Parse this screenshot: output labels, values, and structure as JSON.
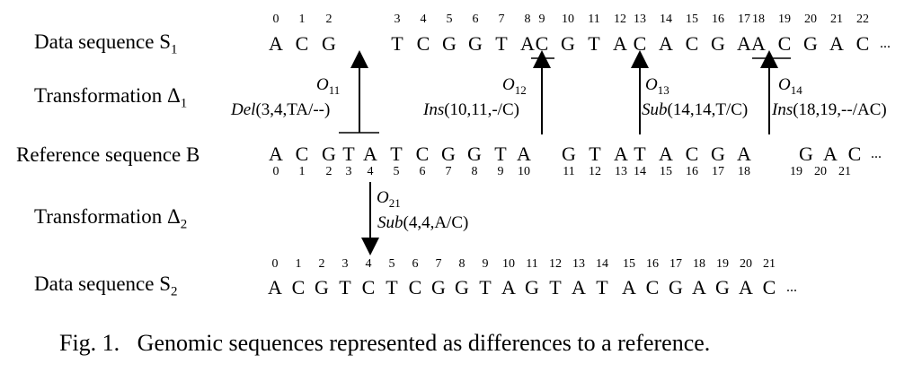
{
  "labels": {
    "s1": "Data sequence S",
    "s1_sub": "1",
    "delta1": "Transformation Δ",
    "delta1_sub": "1",
    "b": "Reference sequence B",
    "delta2": "Transformation Δ",
    "delta2_sub": "2",
    "s2": "Data sequence S",
    "s2_sub": "2"
  },
  "sequences": {
    "s1_idx": [
      "0",
      "1",
      "2",
      "3",
      "4",
      "5",
      "6",
      "7",
      "8",
      "9",
      "10",
      "11",
      "12",
      "13",
      "14",
      "15",
      "16",
      "17",
      "18",
      "19",
      "20",
      "21",
      "22"
    ],
    "s1": [
      "A",
      "C",
      "G",
      "T",
      "C",
      "G",
      "G",
      "T",
      "A",
      "C",
      "G",
      "T",
      "A",
      "C",
      "A",
      "C",
      "G",
      "A",
      "A",
      "C",
      "G",
      "A",
      "C"
    ],
    "b": [
      "A",
      "C",
      "G",
      "T",
      "A",
      "T",
      "C",
      "G",
      "G",
      "T",
      "A",
      "G",
      "T",
      "A",
      "T",
      "A",
      "C",
      "G",
      "A",
      "G",
      "A",
      "C"
    ],
    "b_idx": [
      "0",
      "1",
      "2",
      "3",
      "4",
      "5",
      "6",
      "7",
      "8",
      "9",
      "10",
      "11",
      "12",
      "13",
      "14",
      "15",
      "16",
      "17",
      "18",
      "19",
      "20",
      "21"
    ],
    "s2_idx": [
      "0",
      "1",
      "2",
      "3",
      "4",
      "5",
      "6",
      "7",
      "8",
      "9",
      "10",
      "11",
      "12",
      "13",
      "14",
      "15",
      "16",
      "17",
      "18",
      "19",
      "20",
      "21"
    ],
    "s2": [
      "A",
      "C",
      "G",
      "T",
      "C",
      "T",
      "C",
      "G",
      "G",
      "T",
      "A",
      "G",
      "T",
      "A",
      "T",
      "A",
      "C",
      "G",
      "A",
      "G",
      "A",
      "C"
    ],
    "ellipsis": "..."
  },
  "ops": {
    "o11": {
      "name": "O",
      "sub": "11",
      "kind": "Del",
      "args": "(3,4,TA/--)"
    },
    "o12": {
      "name": "O",
      "sub": "12",
      "kind": "Ins",
      "args": "(10,11,-/C)"
    },
    "o13": {
      "name": "O",
      "sub": "13",
      "kind": "Sub",
      "args": "(14,14,T/C)"
    },
    "o14": {
      "name": "O",
      "sub": "14",
      "kind": "Ins",
      "args": "(18,19,--/AC)"
    },
    "o21": {
      "name": "O",
      "sub": "21",
      "kind": "Sub",
      "args": "(4,4,A/C)"
    }
  },
  "caption": "Fig. 1.   Genomic sequences represented as differences to a reference."
}
